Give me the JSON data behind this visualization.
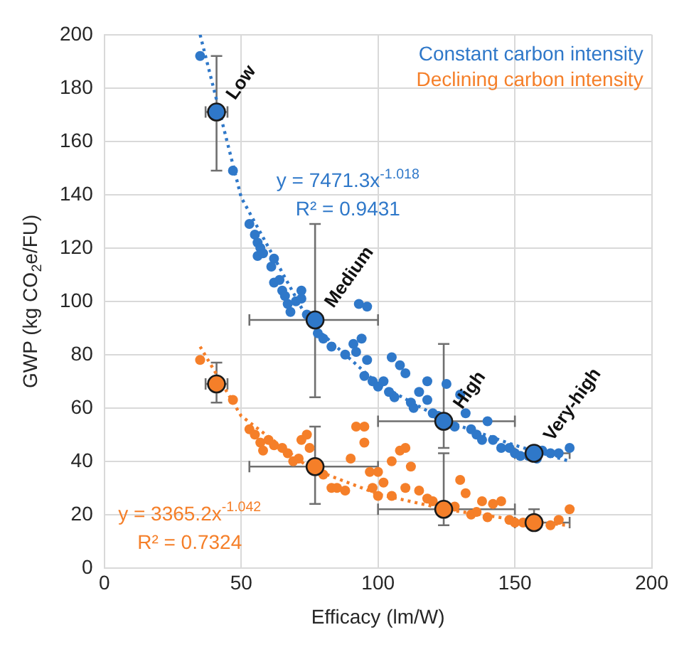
{
  "chart_data": {
    "type": "scatter",
    "xlabel": "Efficacy (lm/W)",
    "ylabel": "GWP (kg CO$_{2}$e/FU)",
    "xlim": [
      0,
      200
    ],
    "xticks": [
      0,
      50,
      100,
      150,
      200
    ],
    "ylim": [
      0,
      200
    ],
    "yticks": [
      0,
      20,
      40,
      60,
      80,
      100,
      120,
      140,
      160,
      180,
      200
    ],
    "grid": true,
    "legend": "top right",
    "series": [
      {
        "name": "Constant carbon intensity",
        "marker": "circle",
        "color": "#2f78c9",
        "x": [
          35,
          47,
          53,
          55,
          56,
          57,
          56,
          58,
          61,
          62,
          62,
          64,
          65,
          66,
          67,
          68,
          70,
          72,
          72,
          74,
          78,
          80,
          83,
          88,
          91,
          92,
          95,
          96,
          98,
          100,
          102,
          104,
          106,
          108,
          110,
          112,
          113,
          115,
          118,
          120,
          122,
          128,
          130,
          132,
          134,
          136,
          138,
          140,
          142,
          145,
          148,
          150,
          152,
          155,
          158,
          160,
          163,
          166,
          170,
          118,
          125,
          105,
          94,
          93,
          96
        ],
        "values": [
          192,
          149,
          129,
          125,
          122,
          120,
          117,
          118,
          113,
          116,
          107,
          108,
          104,
          102,
          99,
          96,
          100,
          104,
          101,
          95,
          88,
          86,
          83,
          80,
          84,
          81,
          72,
          78,
          70,
          68,
          70,
          66,
          64,
          76,
          73,
          62,
          60,
          66,
          63,
          58,
          57,
          53,
          65,
          58,
          52,
          50,
          48,
          55,
          48,
          45,
          45,
          43,
          42,
          42,
          41,
          44,
          43,
          43,
          45,
          70,
          69,
          79,
          86,
          99,
          98
        ]
      },
      {
        "name": "Declining carbon intensity",
        "marker": "circle",
        "color": "#f57f29",
        "x": [
          35,
          47,
          53,
          55,
          57,
          58,
          60,
          62,
          65,
          67,
          69,
          71,
          72,
          74,
          75,
          80,
          83,
          85,
          90,
          92,
          95,
          95,
          97,
          98,
          100,
          102,
          105,
          108,
          110,
          112,
          115,
          118,
          120,
          128,
          130,
          132,
          134,
          136,
          138,
          140,
          142,
          145,
          148,
          150,
          153,
          163,
          166,
          170,
          110,
          105,
          100,
          88
        ],
        "values": [
          78,
          63,
          52,
          50,
          47,
          44,
          48,
          46,
          45,
          43,
          40,
          41,
          48,
          50,
          45,
          35,
          30,
          30,
          41,
          53,
          53,
          47,
          36,
          30,
          27,
          32,
          40,
          44,
          45,
          38,
          29,
          26,
          25,
          23,
          33,
          28,
          20,
          21,
          25,
          19,
          24,
          25,
          18,
          17,
          17,
          16,
          18,
          22,
          30,
          27,
          36,
          29
        ]
      },
      {
        "type": "line",
        "marker": "none",
        "line_style": "dotted",
        "color": "#2f78c9",
        "x": [
          35,
          50,
          75,
          100,
          125,
          150,
          170
        ],
        "values": [
          200,
          139,
          92,
          69,
          55,
          46,
          40
        ]
      },
      {
        "type": "line",
        "marker": "none",
        "line_style": "dotted",
        "color": "#f57f29",
        "x": [
          35,
          50,
          75,
          100,
          125,
          150,
          170
        ],
        "values": [
          83,
          57,
          37.5,
          27.7,
          21.9,
          18.1,
          15.9
        ]
      },
      {
        "marker": "circle",
        "color": "#2f78c9",
        "x": [
          41,
          77,
          124,
          157
        ],
        "values": [
          171,
          93,
          55,
          43
        ],
        "errors": [
          [
            149,
            192
          ],
          [
            64,
            129
          ],
          [
            45,
            84
          ],
          null
        ],
        "xerrors": [
          [
            37,
            45
          ],
          [
            53,
            100
          ],
          [
            100,
            150
          ],
          [
            150,
            170
          ]
        ]
      },
      {
        "marker": "circle",
        "color": "#f57f29",
        "x": [
          41,
          77,
          124,
          157
        ],
        "values": [
          69,
          38,
          22,
          17
        ],
        "errors": [
          [
            62,
            77
          ],
          [
            24,
            53
          ],
          [
            16,
            43
          ],
          [
            15,
            22
          ]
        ],
        "xerrors": [
          [
            37,
            45
          ],
          [
            53,
            100
          ],
          [
            100,
            150
          ],
          [
            150,
            170
          ]
        ]
      }
    ],
    "annotations": [
      {
        "text": "Low",
        "x": 41,
        "y": 171
      },
      {
        "text": "Medium",
        "x": 77,
        "y": 93
      },
      {
        "text": "High",
        "x": 124,
        "y": 55
      },
      {
        "text": "Very-high",
        "x": 157,
        "y": 43
      },
      "y = 7471.3x$^{-1.018}$",
      "R² = 0.9431",
      "y = 3365.2x$^{-1.042}$",
      "R² = 0.7324"
    ]
  }
}
